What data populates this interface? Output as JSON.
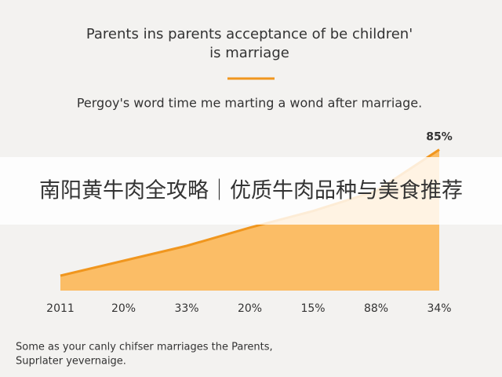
{
  "chart_data": {
    "type": "area",
    "title": "Parents ins parents acceptance of be children'",
    "title_line2": "is marriage",
    "subtitle": "Pergoy's word time me marting a wond after marriage.",
    "categories": [
      "2011",
      "20%",
      "33%",
      "20%",
      "15%",
      "88%",
      "34%"
    ],
    "values": [
      9,
      18,
      27,
      38,
      48,
      60,
      85
    ],
    "value_labels": [
      null,
      null,
      null,
      null,
      null,
      null,
      "85%"
    ],
    "ylim": [
      0,
      90
    ],
    "color": "#fbbd66",
    "line_color": "#f0961e",
    "footnote": "Some as your canly chifser marriages the Parents,",
    "footnote_line2": "Suprlater yevernaige."
  },
  "banner": {
    "text": "南阳黄牛肉全攻略｜优质牛肉品种与美食推荐"
  }
}
